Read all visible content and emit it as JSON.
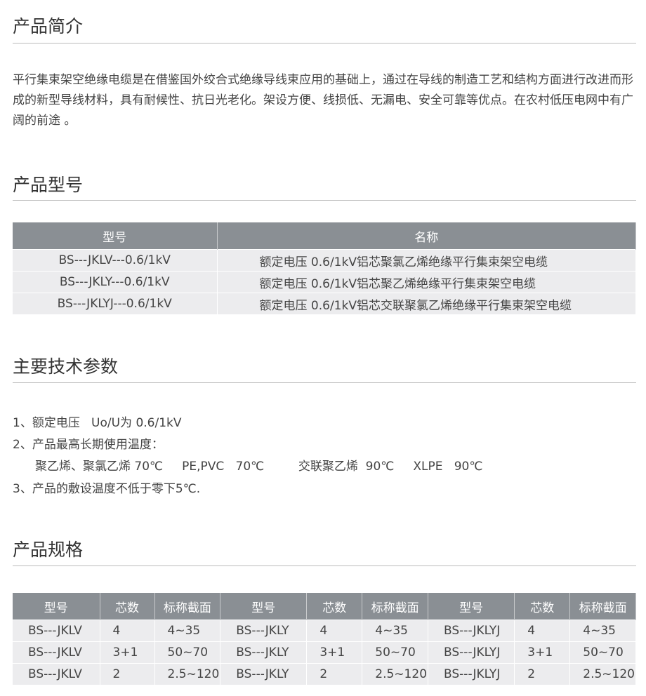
{
  "sections": {
    "intro": {
      "title": "产品简介",
      "text": "平行集束架空绝缘电缆是在借鉴国外绞合式绝缘导线束应用的基础上，通过在导线的制造工艺和结构方面进行改进而形成的新型导线材料，具有耐候性、抗日光老化。架设方便、线损低、无漏电、安全可靠等优点。在农村低压电网中有广阔的前途 。"
    },
    "models": {
      "title": "产品型号",
      "headers": [
        "型号",
        "名称"
      ],
      "rows": [
        [
          "BS---JKLV---0.6/1kV",
          "额定电压 0.6/1kV铝芯聚氯乙烯绝缘平行集束架空电缆"
        ],
        [
          "BS---JKLY---0.6/1kV",
          "额定电压 0.6/1kV铝芯聚乙烯绝缘平行集束架空电缆"
        ],
        [
          "BS---JKLYJ---0.6/1kV",
          "额定电压 0.6/1kV铝芯交联聚氯乙烯绝缘平行集束架空电缆"
        ]
      ]
    },
    "params": {
      "title": "主要技术参数",
      "lines": [
        "1、额定电压   Uo/U为 0.6/1kV",
        "2、产品最高长期使用温度：",
        "聚乙烯、聚氯乙烯 70℃     PE,PVC   70℃         交联聚乙烯  90℃     XLPE   90℃",
        "3、产品的敷设温度不低于零下5℃."
      ]
    },
    "specs": {
      "title": "产品规格",
      "headers": [
        "型号",
        "芯数",
        "标称截面",
        "型号",
        "芯数",
        "标称截面",
        "型号",
        "芯数",
        "标称截面"
      ],
      "rows": [
        [
          "BS---JKLV",
          "4",
          "4~35",
          "BS---JKLY",
          "4",
          "4~35",
          "BS---JKLYJ",
          "4",
          "4~35"
        ],
        [
          "BS---JKLV",
          "3+1",
          "50~70",
          "BS---JKLY",
          "3+1",
          "50~70",
          "BS---JKLYJ",
          "3+1",
          "50~70"
        ],
        [
          "BS---JKLV",
          "2",
          "2.5~120",
          "BS---JKLY",
          "2",
          "2.5~120",
          "BS---JKLYJ",
          "2",
          "2.5~120"
        ]
      ]
    }
  }
}
